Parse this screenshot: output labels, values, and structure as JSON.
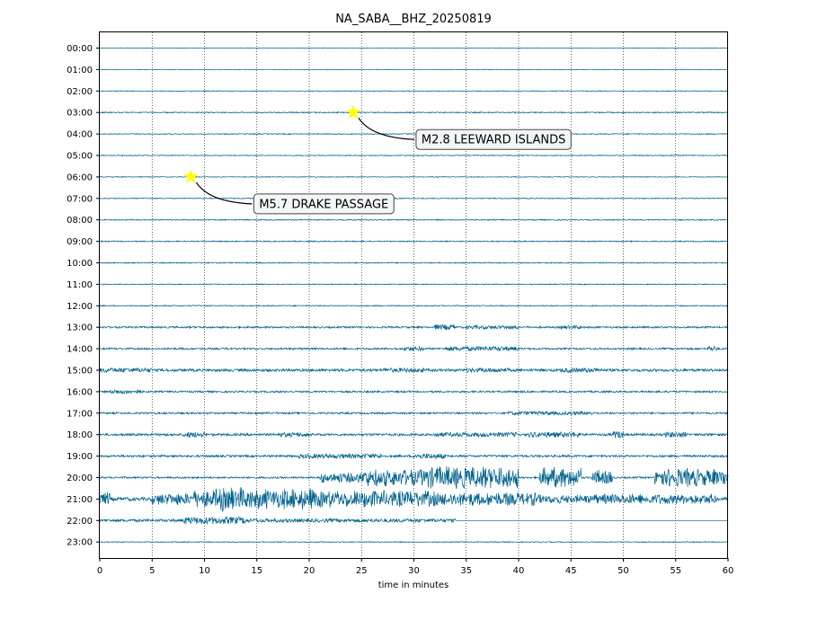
{
  "chart_data": {
    "type": "line",
    "title": "NA_SABA__BHZ_20250819",
    "xlabel": "time in minutes",
    "ylabel": "",
    "xlim": [
      0,
      60
    ],
    "x_ticks": [
      0,
      5,
      10,
      15,
      20,
      25,
      30,
      35,
      40,
      45,
      50,
      55,
      60
    ],
    "y_tick_labels": [
      "00:00",
      "01:00",
      "02:00",
      "03:00",
      "04:00",
      "05:00",
      "06:00",
      "07:00",
      "08:00",
      "09:00",
      "10:00",
      "11:00",
      "12:00",
      "13:00",
      "14:00",
      "15:00",
      "16:00",
      "17:00",
      "18:00",
      "19:00",
      "20:00",
      "21:00",
      "22:00",
      "23:00"
    ],
    "grid": "vertical-dotted",
    "trace_color": "#00628e",
    "star_color": "#ffff00",
    "amplitude_by_hour": [
      [
        {
          "start": 0,
          "end": 60,
          "level": 0.3
        }
      ],
      [
        {
          "start": 0,
          "end": 60,
          "level": 0.3
        }
      ],
      [
        {
          "start": 0,
          "end": 60,
          "level": 0.4
        }
      ],
      [
        {
          "start": 0,
          "end": 60,
          "level": 0.6
        }
      ],
      [
        {
          "start": 0,
          "end": 60,
          "level": 0.5
        }
      ],
      [
        {
          "start": 0,
          "end": 60,
          "level": 0.5
        }
      ],
      [
        {
          "start": 0,
          "end": 60,
          "level": 0.4
        }
      ],
      [
        {
          "start": 0,
          "end": 60,
          "level": 0.5
        }
      ],
      [
        {
          "start": 0,
          "end": 60,
          "level": 0.6
        }
      ],
      [
        {
          "start": 0,
          "end": 60,
          "level": 0.6
        }
      ],
      [
        {
          "start": 0,
          "end": 60,
          "level": 0.6
        }
      ],
      [
        {
          "start": 0,
          "end": 60,
          "level": 0.5
        }
      ],
      [
        {
          "start": 0,
          "end": 60,
          "level": 0.6
        }
      ],
      [
        {
          "start": 0,
          "end": 60,
          "level": 1.0
        },
        {
          "start": 32,
          "end": 34,
          "level": 3
        },
        {
          "start": 35,
          "end": 40,
          "level": 2
        },
        {
          "start": 44,
          "end": 46,
          "level": 2
        }
      ],
      [
        {
          "start": 0,
          "end": 60,
          "level": 1.0
        },
        {
          "start": 29,
          "end": 31,
          "level": 2.5
        },
        {
          "start": 33,
          "end": 40,
          "level": 2.5
        },
        {
          "start": 58,
          "end": 59,
          "level": 3
        }
      ],
      [
        {
          "start": 0,
          "end": 60,
          "level": 1.5
        },
        {
          "start": 0,
          "end": 5,
          "level": 2.5
        },
        {
          "start": 27,
          "end": 31,
          "level": 2.5
        },
        {
          "start": 35,
          "end": 39,
          "level": 2.5
        },
        {
          "start": 44,
          "end": 48,
          "level": 2.5
        }
      ],
      [
        {
          "start": 0,
          "end": 60,
          "level": 1.0
        },
        {
          "start": 1,
          "end": 4,
          "level": 2.5
        }
      ],
      [
        {
          "start": 0,
          "end": 60,
          "level": 1.0
        },
        {
          "start": 39,
          "end": 47,
          "level": 2
        }
      ],
      [
        {
          "start": 0,
          "end": 60,
          "level": 1.3
        },
        {
          "start": 8,
          "end": 10,
          "level": 3
        },
        {
          "start": 17,
          "end": 20,
          "level": 2.5
        },
        {
          "start": 32,
          "end": 40,
          "level": 2.5
        },
        {
          "start": 41,
          "end": 46,
          "level": 3
        },
        {
          "start": 49,
          "end": 50,
          "level": 4
        },
        {
          "start": 54,
          "end": 56,
          "level": 3
        }
      ],
      [
        {
          "start": 0,
          "end": 60,
          "level": 1.2
        },
        {
          "start": 19,
          "end": 27,
          "level": 2.5
        },
        {
          "start": 30,
          "end": 33,
          "level": 3
        }
      ],
      [
        {
          "start": 0,
          "end": 60,
          "level": 1.0
        },
        {
          "start": 21,
          "end": 25,
          "level": 6
        },
        {
          "start": 25,
          "end": 31,
          "level": 10
        },
        {
          "start": 31,
          "end": 40,
          "level": 13
        },
        {
          "start": 42,
          "end": 46,
          "level": 12
        },
        {
          "start": 47,
          "end": 49,
          "level": 9
        },
        {
          "start": 53,
          "end": 57,
          "level": 11
        },
        {
          "start": 57,
          "end": 60,
          "level": 10
        }
      ],
      [
        {
          "start": 0,
          "end": 60,
          "level": 2
        },
        {
          "start": 0,
          "end": 1,
          "level": 8
        },
        {
          "start": 5,
          "end": 9,
          "level": 7
        },
        {
          "start": 9,
          "end": 11,
          "level": 10
        },
        {
          "start": 11,
          "end": 14,
          "level": 14
        },
        {
          "start": 14,
          "end": 21,
          "level": 12
        },
        {
          "start": 21,
          "end": 32,
          "level": 10
        },
        {
          "start": 32,
          "end": 42,
          "level": 8
        },
        {
          "start": 42,
          "end": 47,
          "level": 5
        },
        {
          "start": 47,
          "end": 52,
          "level": 6
        },
        {
          "start": 52,
          "end": 59,
          "level": 6
        }
      ],
      [
        {
          "start": 0,
          "end": 34,
          "level": 1.5
        },
        {
          "start": 8,
          "end": 14,
          "level": 4
        },
        {
          "start": 14,
          "end": 34,
          "level": 2
        }
      ],
      [
        {
          "start": 0,
          "end": 60,
          "level": 0.5
        }
      ]
    ],
    "annotations": [
      {
        "label": "M5.7 DRAKE PASSAGE",
        "hour": 6,
        "minute": 8.7
      },
      {
        "label": "M2.8 LEEWARD ISLANDS",
        "hour": 3,
        "minute": 24.2
      }
    ]
  }
}
